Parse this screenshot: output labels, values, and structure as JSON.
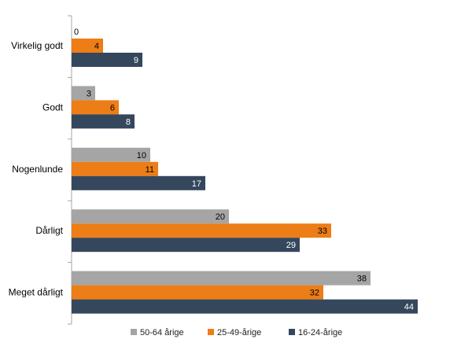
{
  "chart_data": {
    "type": "bar",
    "orientation": "horizontal",
    "title": "",
    "xlabel": "",
    "ylabel": "",
    "xlim": [
      0,
      50
    ],
    "grid": false,
    "legend_position": "bottom",
    "categories": [
      "Virkelig godt",
      "Godt",
      "Nogenlunde",
      "Dårligt",
      "Meget dårligt"
    ],
    "series": [
      {
        "name": "50-64 årige",
        "color": "#A5A5A5",
        "values": [
          0,
          3,
          10,
          20,
          38
        ]
      },
      {
        "name": "25-49-årige",
        "color": "#ED7D16",
        "values": [
          4,
          6,
          11,
          33,
          32
        ]
      },
      {
        "name": "16-24-årige",
        "color": "#34475D",
        "values": [
          9,
          8,
          17,
          29,
          44
        ]
      }
    ]
  }
}
